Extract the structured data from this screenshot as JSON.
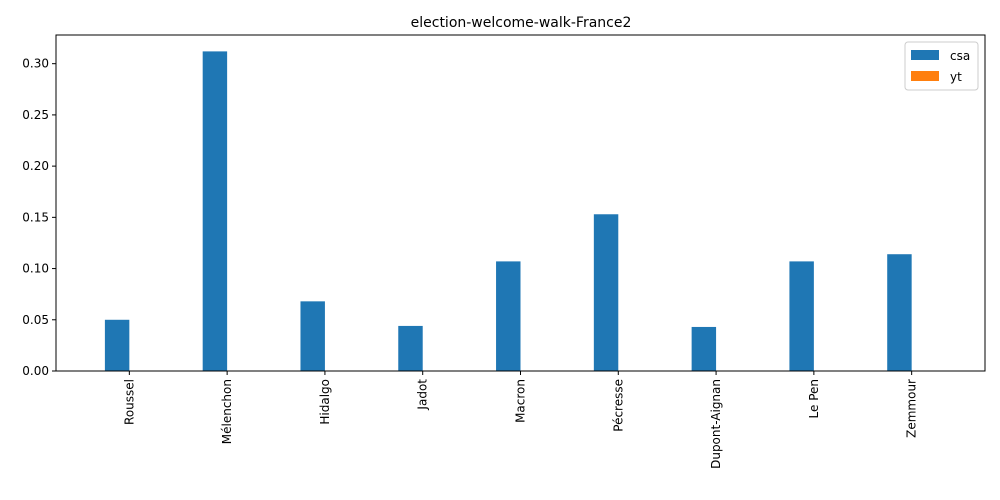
{
  "chart_data": {
    "type": "bar",
    "title": "election-welcome-walk-France2",
    "xlabel": "",
    "ylabel": "",
    "categories": [
      "Roussel",
      "Mélenchon",
      "Hidalgo",
      "Jadot",
      "Macron",
      "Pécresse",
      "Dupont-Aignan",
      "Le Pen",
      "Zemmour"
    ],
    "series": [
      {
        "name": "csa",
        "color": "#1f77b4",
        "values": [
          0.05,
          0.312,
          0.068,
          0.044,
          0.107,
          0.153,
          0.043,
          0.107,
          0.114
        ]
      },
      {
        "name": "yt",
        "color": "#ff7f0e",
        "values": [
          0,
          0,
          0,
          0,
          0,
          0,
          0,
          0,
          0
        ]
      }
    ],
    "ylim": [
      0,
      0.328
    ],
    "yticks": [
      0.0,
      0.05,
      0.1,
      0.15,
      0.2,
      0.25,
      0.3
    ],
    "ytick_labels": [
      "0.00",
      "0.05",
      "0.10",
      "0.15",
      "0.20",
      "0.25",
      "0.30"
    ],
    "legend": "top-right",
    "grid": false
  }
}
